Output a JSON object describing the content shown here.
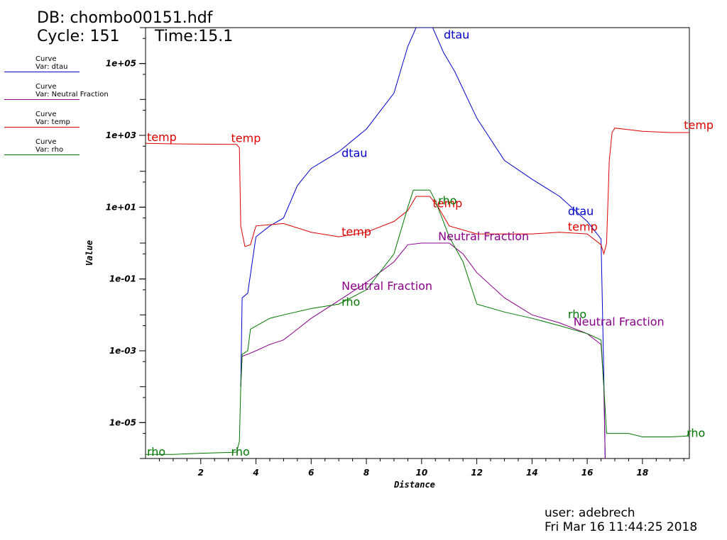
{
  "header": {
    "db": "DB: chombo00151.hdf",
    "cycle": "Cycle: 151",
    "time": "Time:15.1"
  },
  "footer": {
    "user": "user: adebrech",
    "date": "Fri Mar 16 11:44:25 2018"
  },
  "legend": [
    {
      "title": "Curve",
      "var": "Var: dtau",
      "color": "#0000cc"
    },
    {
      "title": "Curve",
      "var": "Var: Neutral Fraction",
      "color": "#880088"
    },
    {
      "title": "Curve",
      "var": "Var: temp",
      "color": "#dd0000"
    },
    {
      "title": "Curve",
      "var": "Var: rho",
      "color": "#007700"
    }
  ],
  "chart_data": {
    "type": "line",
    "xlabel": "Distance",
    "ylabel": "Value",
    "xlim": [
      0,
      19.7
    ],
    "ylim": [
      1e-06,
      1000000.0
    ],
    "yscale": "log",
    "xticks": [
      2,
      4,
      6,
      8,
      10,
      12,
      14,
      16,
      18
    ],
    "xtick_labels": [
      "2",
      "4",
      "6",
      "8",
      "10",
      "12",
      "14",
      "16",
      "18"
    ],
    "yticks": [
      100000,
      1000,
      10,
      0.1,
      0.001,
      1e-05
    ],
    "ytick_labels": [
      "1e+05",
      "1e+03",
      "1e+01",
      "1e-01",
      "1e-03",
      "1e-05"
    ],
    "grid": false,
    "series": [
      {
        "name": "dtau",
        "color": "#0000cc",
        "labels": [
          {
            "x": 10.8,
            "y": 500000,
            "text": "dtau"
          },
          {
            "x": 7.1,
            "y": 250,
            "text": "dtau"
          },
          {
            "x": 15.3,
            "y": 6,
            "text": "dtau"
          }
        ],
        "points": [
          [
            3.45,
            0.0001
          ],
          [
            3.5,
            0.03
          ],
          [
            3.7,
            0.04
          ],
          [
            4.0,
            1.5
          ],
          [
            4.5,
            3
          ],
          [
            5.0,
            5
          ],
          [
            5.5,
            40
          ],
          [
            6.0,
            120
          ],
          [
            7.0,
            350
          ],
          [
            8.0,
            1500
          ],
          [
            9.0,
            15000
          ],
          [
            9.5,
            300000
          ],
          [
            9.8,
            1000000
          ],
          [
            10.4,
            1000000
          ],
          [
            10.8,
            200000
          ],
          [
            11.2,
            60000
          ],
          [
            12.0,
            3000
          ],
          [
            13.0,
            200
          ],
          [
            14.0,
            60
          ],
          [
            15.0,
            20
          ],
          [
            16.0,
            4
          ],
          [
            16.5,
            1.3
          ],
          [
            16.6,
            0.0002
          ],
          [
            16.65,
            1e-06
          ]
        ]
      },
      {
        "name": "Neutral Fraction",
        "color": "#880088",
        "labels": [
          {
            "x": 7.1,
            "y": 0.05,
            "text": "Neutral Fraction"
          },
          {
            "x": 10.6,
            "y": 1.2,
            "text": "Neutral Fraction"
          },
          {
            "x": 15.5,
            "y": 0.005,
            "text": "Neutral Fraction"
          }
        ],
        "points": [
          [
            3.45,
            0.0001
          ],
          [
            3.5,
            0.0007
          ],
          [
            3.7,
            0.0008
          ],
          [
            4.0,
            0.001
          ],
          [
            4.5,
            0.0015
          ],
          [
            5.0,
            0.002
          ],
          [
            5.5,
            0.004
          ],
          [
            6.0,
            0.008
          ],
          [
            7.0,
            0.025
          ],
          [
            8.0,
            0.08
          ],
          [
            9.0,
            0.3
          ],
          [
            9.5,
            0.9
          ],
          [
            10.0,
            1.0
          ],
          [
            11.0,
            1.0
          ],
          [
            11.5,
            0.5
          ],
          [
            12.0,
            0.15
          ],
          [
            13.0,
            0.03
          ],
          [
            14.0,
            0.01
          ],
          [
            15.0,
            0.006
          ],
          [
            16.0,
            0.003
          ],
          [
            16.5,
            0.0015
          ],
          [
            16.6,
            0.0001
          ],
          [
            16.65,
            1e-06
          ]
        ]
      },
      {
        "name": "temp",
        "color": "#dd0000",
        "labels": [
          {
            "x": 0.05,
            "y": 700,
            "text": "temp"
          },
          {
            "x": 3.1,
            "y": 650,
            "text": "temp"
          },
          {
            "x": 7.1,
            "y": 1.6,
            "text": "temp"
          },
          {
            "x": 10.4,
            "y": 10,
            "text": "temp"
          },
          {
            "x": 15.3,
            "y": 2.2,
            "text": "temp"
          },
          {
            "x": 19.5,
            "y": 1500,
            "text": "temp"
          }
        ],
        "points": [
          [
            0,
            600
          ],
          [
            1.0,
            580
          ],
          [
            2.0,
            570
          ],
          [
            3.3,
            560
          ],
          [
            3.4,
            450
          ],
          [
            3.45,
            3
          ],
          [
            3.6,
            0.8
          ],
          [
            3.8,
            0.9
          ],
          [
            4.0,
            3
          ],
          [
            5.0,
            3.5
          ],
          [
            6.0,
            2
          ],
          [
            7.0,
            1.5
          ],
          [
            8.0,
            2
          ],
          [
            9.0,
            4
          ],
          [
            9.5,
            8
          ],
          [
            9.8,
            20
          ],
          [
            10.3,
            20
          ],
          [
            10.6,
            10
          ],
          [
            11.0,
            3
          ],
          [
            12.0,
            1.8
          ],
          [
            13.0,
            1.8
          ],
          [
            14.0,
            1.8
          ],
          [
            15.0,
            2
          ],
          [
            16.0,
            1.8
          ],
          [
            16.5,
            0.9
          ],
          [
            16.6,
            0.5
          ],
          [
            16.7,
            1
          ],
          [
            16.8,
            200
          ],
          [
            16.9,
            1200
          ],
          [
            17.0,
            1600
          ],
          [
            18.0,
            1300
          ],
          [
            19.0,
            1200
          ],
          [
            19.7,
            1200
          ]
        ]
      },
      {
        "name": "rho",
        "color": "#007700",
        "labels": [
          {
            "x": 0.05,
            "y": 1.2e-06,
            "text": "rho"
          },
          {
            "x": 3.1,
            "y": 1.2e-06,
            "text": "rho"
          },
          {
            "x": 10.6,
            "y": 12,
            "text": "rho"
          },
          {
            "x": 7.1,
            "y": 0.018,
            "text": "rho"
          },
          {
            "x": 15.3,
            "y": 0.008,
            "text": "rho"
          },
          {
            "x": 19.6,
            "y": 4e-06,
            "text": "rho"
          }
        ],
        "points": [
          [
            0,
            1.3e-06
          ],
          [
            1.0,
            1.3e-06
          ],
          [
            2.0,
            1.4e-06
          ],
          [
            3.3,
            1.5e-06
          ],
          [
            3.4,
            3e-06
          ],
          [
            3.45,
            0.0001
          ],
          [
            3.5,
            0.0008
          ],
          [
            3.7,
            0.001
          ],
          [
            3.8,
            0.004
          ],
          [
            4.5,
            0.008
          ],
          [
            5.0,
            0.01
          ],
          [
            6.0,
            0.015
          ],
          [
            7.0,
            0.02
          ],
          [
            8.0,
            0.05
          ],
          [
            9.0,
            0.5
          ],
          [
            9.5,
            10
          ],
          [
            9.7,
            30
          ],
          [
            10.3,
            30
          ],
          [
            10.5,
            15
          ],
          [
            11.0,
            1.5
          ],
          [
            11.5,
            0.3
          ],
          [
            12.0,
            0.02
          ],
          [
            13.0,
            0.012
          ],
          [
            14.0,
            0.008
          ],
          [
            15.0,
            0.005
          ],
          [
            16.0,
            0.003
          ],
          [
            16.5,
            0.002
          ],
          [
            16.6,
            0.0001
          ],
          [
            16.7,
            5e-06
          ],
          [
            17.5,
            5e-06
          ],
          [
            18.0,
            4e-06
          ],
          [
            19.0,
            4e-06
          ],
          [
            19.6,
            4.2e-06
          ],
          [
            19.7,
            5e-06
          ]
        ]
      }
    ]
  }
}
